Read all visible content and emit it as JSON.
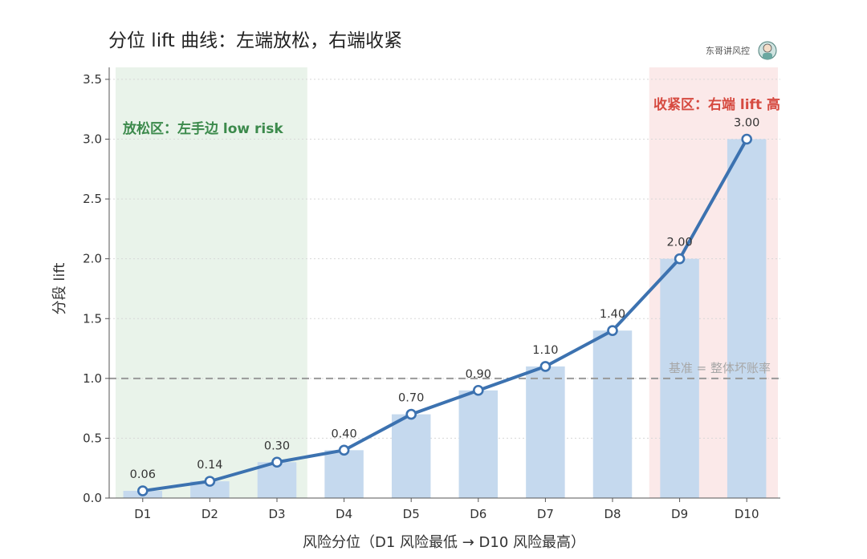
{
  "title": "分位 lift 曲线：左端放松，右端收紧",
  "watermark": "东哥讲风控",
  "colors": {
    "bar": "#c5d9ee",
    "line": "#3c72b0",
    "left_zone": "#e9f3ea",
    "right_zone": "#fbe9e9",
    "left_text": "#3c8a4c",
    "right_text": "#d64a40",
    "baseline": "#999999"
  },
  "chart_data": {
    "type": "bar",
    "categories": [
      "D1",
      "D2",
      "D3",
      "D4",
      "D5",
      "D6",
      "D7",
      "D8",
      "D9",
      "D10"
    ],
    "values": [
      0.06,
      0.14,
      0.3,
      0.4,
      0.7,
      0.9,
      1.1,
      1.4,
      2.0,
      3.0
    ],
    "data_labels": [
      "0.06",
      "0.14",
      "0.30",
      "0.40",
      "0.70",
      "0.90",
      "1.10",
      "1.40",
      "2.00",
      "3.00"
    ],
    "line_overlay": true,
    "xlabel": "风险分位（D1 风险最低 → D10 风险最高）",
    "ylabel": "分段 lift",
    "ylim": [
      0,
      3.6
    ],
    "yticks": [
      "0.0",
      "0.5",
      "1.0",
      "1.5",
      "2.0",
      "2.5",
      "3.0",
      "3.5"
    ],
    "ytick_values": [
      0,
      0.5,
      1.0,
      1.5,
      2.0,
      2.5,
      3.0,
      3.5
    ],
    "grid": "horizontal dotted",
    "baseline": {
      "value": 1.0,
      "label": "基准 = 整体坏账率"
    },
    "zones": [
      {
        "from": "D1",
        "to": "D3",
        "label": "放松区：左手边 low risk"
      },
      {
        "from": "D9",
        "to": "D10",
        "label": "收紧区：右端 lift 高"
      }
    ]
  }
}
